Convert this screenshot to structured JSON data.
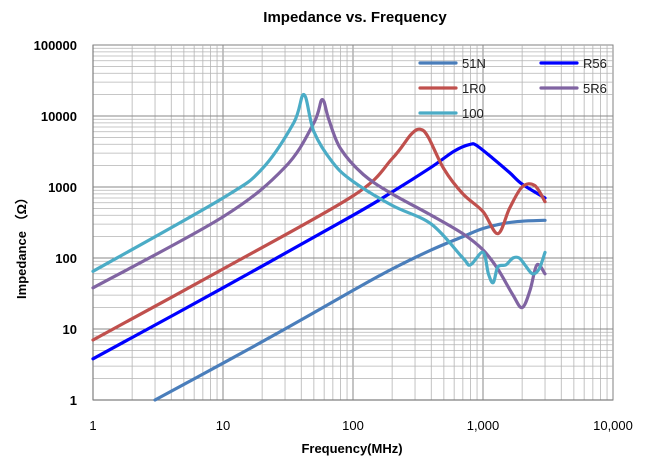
{
  "chart_data": {
    "type": "line",
    "title": "Impedance vs. Frequency",
    "xlabel": "Frequency(MHz)",
    "ylabel": "Impedance （Ω）",
    "x_scale": "log",
    "y_scale": "log",
    "xlim": [
      1,
      10000
    ],
    "ylim": [
      1,
      100000
    ],
    "x_ticks": [
      "1",
      "10",
      "100",
      "1,000",
      "10,000"
    ],
    "y_ticks": [
      "1",
      "10",
      "100",
      "1000",
      "10000",
      "100000"
    ],
    "grid": true,
    "legend_position": "top-right",
    "series": [
      {
        "name": "51N",
        "color": "#4A7EBB",
        "x": [
          3,
          10,
          30,
          100,
          200,
          400,
          700,
          1000,
          1500,
          2000,
          3000
        ],
        "y": [
          1,
          3.3,
          10,
          35,
          70,
          130,
          200,
          260,
          310,
          330,
          340
        ]
      },
      {
        "name": "R56",
        "color": "#0000FF",
        "x": [
          1,
          10,
          100,
          200,
          400,
          600,
          800,
          900,
          1200,
          1600,
          2000,
          3000
        ],
        "y": [
          3.8,
          38,
          400,
          850,
          1900,
          3200,
          4000,
          3800,
          2500,
          1600,
          1100,
          700
        ]
      },
      {
        "name": "1R0",
        "color": "#C0504D",
        "x": [
          1,
          10,
          100,
          200,
          280,
          330,
          380,
          500,
          700,
          1000,
          1300,
          1600,
          2000,
          2500,
          3000
        ],
        "y": [
          7,
          70,
          750,
          2500,
          5500,
          6500,
          5000,
          1800,
          800,
          450,
          220,
          500,
          1000,
          1050,
          620
        ]
      },
      {
        "name": "5R6",
        "color": "#8064A2",
        "x": [
          1,
          10,
          30,
          50,
          58,
          65,
          80,
          120,
          200,
          400,
          700,
          1000,
          1300,
          1700,
          2000,
          2300,
          2600,
          3000
        ],
        "y": [
          38,
          380,
          1900,
          8000,
          17000,
          9000,
          3500,
          1500,
          800,
          400,
          220,
          130,
          70,
          30,
          20,
          35,
          80,
          60
        ]
      },
      {
        "name": "100",
        "color": "#4BACC6",
        "x": [
          1,
          10,
          20,
          35,
          42,
          50,
          70,
          100,
          200,
          400,
          700,
          800,
          1000,
          1100,
          1200,
          1300,
          1500,
          1700,
          1900,
          2100,
          2400,
          2700,
          3000
        ],
        "y": [
          65,
          700,
          1800,
          8000,
          20000,
          6000,
          2200,
          1200,
          550,
          300,
          100,
          80,
          120,
          60,
          45,
          75,
          80,
          100,
          100,
          80,
          60,
          70,
          120
        ]
      }
    ]
  }
}
